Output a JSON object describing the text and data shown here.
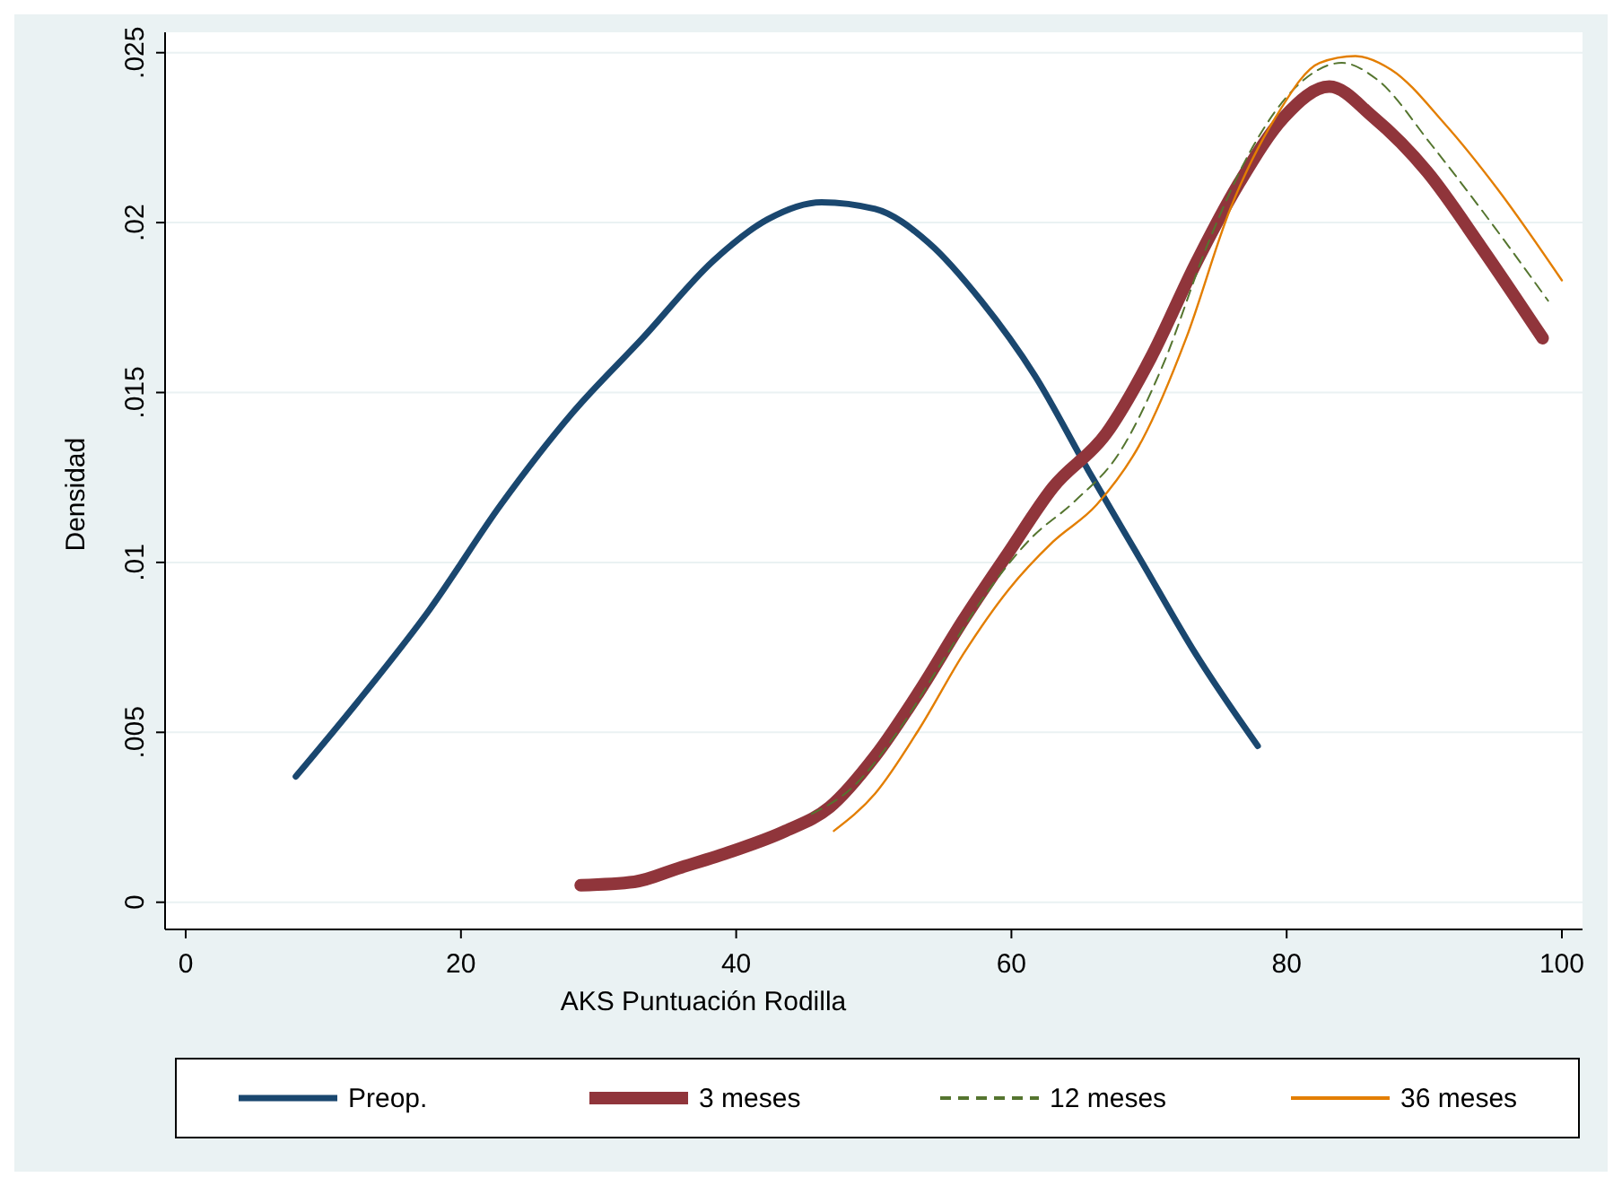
{
  "chart_data": {
    "type": "line",
    "xlabel": "AKS Puntuación Rodilla",
    "ylabel": "Densidad",
    "xlim": [
      -1.5,
      101.5
    ],
    "ylim": [
      -0.0008,
      0.0256
    ],
    "xticks": [
      0,
      20,
      40,
      60,
      80,
      100
    ],
    "yticks": [
      {
        "value": 0,
        "label": "0"
      },
      {
        "value": 0.005,
        "label": ".005"
      },
      {
        "value": 0.01,
        "label": ".01"
      },
      {
        "value": 0.015,
        "label": ".015"
      },
      {
        "value": 0.02,
        "label": ".02"
      },
      {
        "value": 0.025,
        "label": ".025"
      }
    ],
    "grid": "y",
    "legend": "bottom",
    "marker": "none",
    "series": [
      {
        "name": "Preop.",
        "color": "#1a476f",
        "line_style": "solid",
        "x": [
          8,
          12.5,
          17.7,
          22.9,
          28.1,
          33.2,
          38.4,
          42.3,
          46.2,
          50.1,
          54,
          57.8,
          61.7,
          65.6,
          69.5,
          73.4,
          77.9
        ],
        "values": [
          0.0037,
          0.0059,
          0.0086,
          0.0117,
          0.0144,
          0.0166,
          0.0189,
          0.0201,
          0.0206,
          0.0204,
          0.0194,
          0.0177,
          0.0155,
          0.0127,
          0.01,
          0.0073,
          0.0046
        ]
      },
      {
        "name": "3 meses",
        "color": "#90353b",
        "line_style": "solid",
        "x": [
          28.7,
          32.6,
          35.8,
          39.7,
          43.6,
          46.8,
          50.1,
          53.3,
          56.5,
          59.8,
          63,
          66.9,
          70.1,
          73.4,
          76.6,
          79.8,
          83.1,
          86.3,
          90.2,
          94.1,
          98.6
        ],
        "values": [
          0.0005,
          0.0006,
          0.001,
          0.0015,
          0.0021,
          0.0028,
          0.0043,
          0.0062,
          0.0083,
          0.0103,
          0.0122,
          0.0138,
          0.016,
          0.0188,
          0.0212,
          0.0231,
          0.024,
          0.0231,
          0.0215,
          0.0193,
          0.0166
        ]
      },
      {
        "name": "12 meses",
        "color": "#55752f",
        "line_style": "dashed",
        "x": [
          45.5,
          48.5,
          51.7,
          55,
          58.2,
          61.4,
          64.6,
          67.8,
          71,
          74.3,
          77.5,
          80.7,
          84,
          86.6,
          90.5,
          94.3,
          99
        ],
        "values": [
          0.0026,
          0.0034,
          0.005,
          0.0071,
          0.0091,
          0.0107,
          0.0118,
          0.0132,
          0.0158,
          0.0194,
          0.0222,
          0.024,
          0.0247,
          0.0242,
          0.0223,
          0.0203,
          0.0177
        ]
      },
      {
        "name": "36 meses",
        "color": "#e37e00",
        "line_style": "solid",
        "x": [
          47.1,
          50.1,
          53.3,
          56.5,
          59.8,
          63,
          66.2,
          69.5,
          72.7,
          75.9,
          79.2,
          82.4,
          85,
          87.6,
          91.5,
          95.3,
          100
        ],
        "values": [
          0.0021,
          0.0032,
          0.0051,
          0.0073,
          0.0092,
          0.0106,
          0.0117,
          0.0136,
          0.0166,
          0.0204,
          0.0231,
          0.0247,
          0.0249,
          0.0245,
          0.0229,
          0.021,
          0.0183
        ]
      }
    ]
  }
}
